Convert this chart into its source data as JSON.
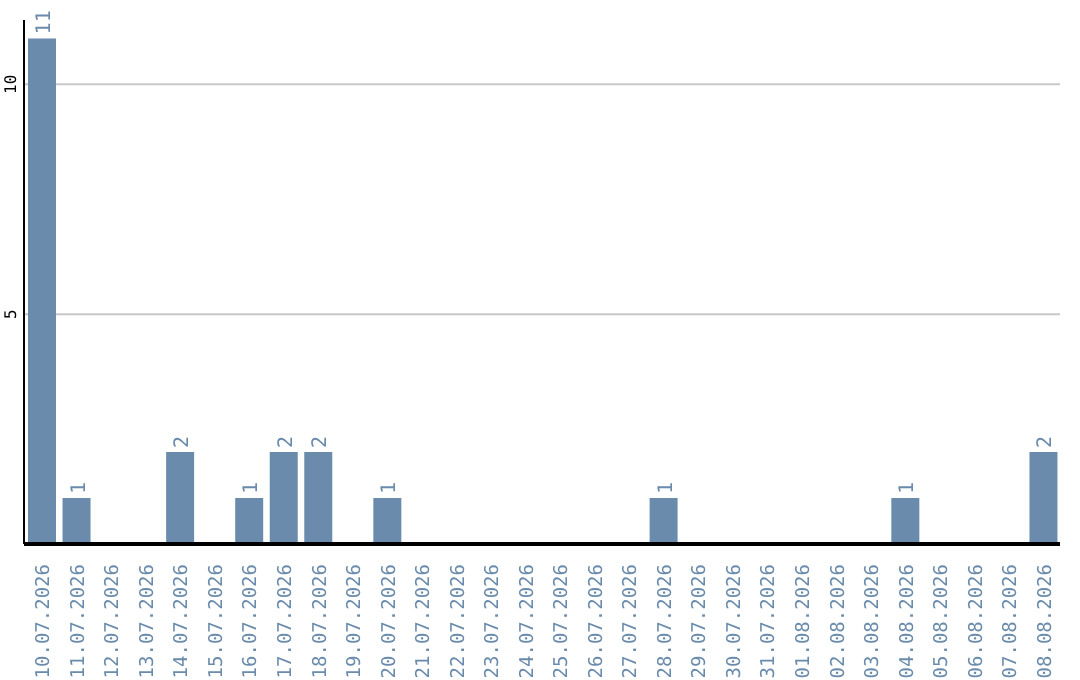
{
  "chart_data": {
    "type": "bar",
    "categories": [
      "10.07.2026",
      "11.07.2026",
      "12.07.2026",
      "13.07.2026",
      "14.07.2026",
      "15.07.2026",
      "16.07.2026",
      "17.07.2026",
      "18.07.2026",
      "19.07.2026",
      "20.07.2026",
      "21.07.2026",
      "22.07.2026",
      "23.07.2026",
      "24.07.2026",
      "25.07.2026",
      "26.07.2026",
      "27.07.2026",
      "28.07.2026",
      "29.07.2026",
      "30.07.2026",
      "31.07.2026",
      "01.08.2026",
      "02.08.2026",
      "03.08.2026",
      "04.08.2026",
      "05.08.2026",
      "06.08.2026",
      "07.08.2026",
      "08.08.2026"
    ],
    "values": [
      11,
      1,
      0,
      0,
      2,
      0,
      1,
      2,
      2,
      0,
      1,
      0,
      0,
      0,
      0,
      0,
      0,
      0,
      1,
      0,
      0,
      0,
      0,
      0,
      0,
      1,
      0,
      0,
      0,
      2
    ],
    "value_labels": [
      "11",
      "1",
      null,
      null,
      "2",
      null,
      "1",
      "2",
      "2",
      null,
      "1",
      null,
      null,
      null,
      null,
      null,
      null,
      null,
      "1",
      null,
      null,
      null,
      null,
      null,
      null,
      "1",
      null,
      null,
      null,
      "2"
    ],
    "color": "#6a8bab",
    "ylim": [
      0,
      11.4
    ],
    "yticks": [
      5,
      10
    ],
    "grid": "y"
  }
}
